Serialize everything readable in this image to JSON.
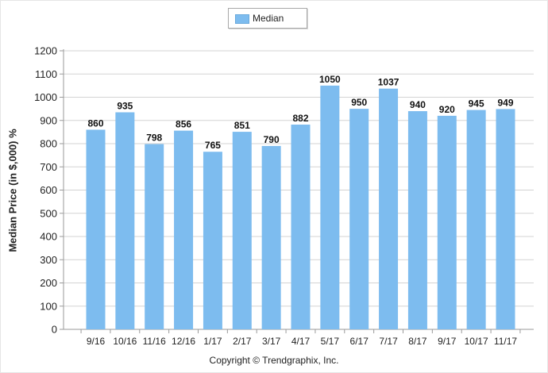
{
  "legend": {
    "label": "Median",
    "color": "#7dbcef"
  },
  "axis": {
    "ylabel": "Median Price (in $,000) %"
  },
  "footer": {
    "copyright": "Copyright © Trendgraphix, Inc."
  },
  "chart_data": {
    "type": "bar",
    "categories": [
      "9/16",
      "10/16",
      "11/16",
      "12/16",
      "1/17",
      "2/17",
      "3/17",
      "4/17",
      "5/17",
      "6/17",
      "7/17",
      "8/17",
      "9/17",
      "10/17",
      "11/17"
    ],
    "series": [
      {
        "name": "Median",
        "values": [
          860,
          935,
          798,
          856,
          765,
          851,
          790,
          882,
          1050,
          950,
          1037,
          940,
          920,
          945,
          949
        ]
      }
    ],
    "title": "",
    "xlabel": "",
    "ylabel": "Median Price (in $,000) %",
    "ylim": [
      0,
      1200
    ],
    "yticks": [
      0,
      100,
      200,
      300,
      400,
      500,
      600,
      700,
      800,
      900,
      1000,
      1100,
      1200
    ],
    "grid": true,
    "legend_position": "top-center",
    "bar_color": "#7dbcef"
  }
}
